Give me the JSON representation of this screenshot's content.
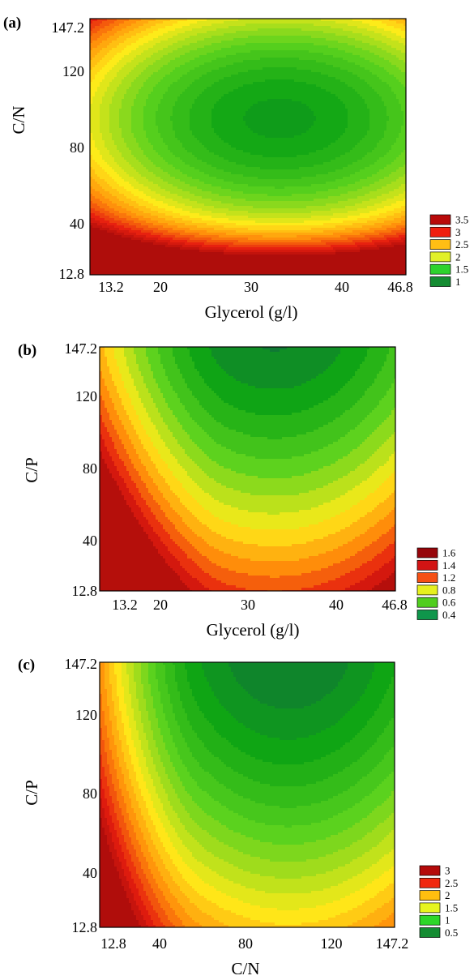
{
  "figure": {
    "colors": {
      "deep_red": "#a50a0a",
      "red": "#e61e0f",
      "orange": "#ff8c0a",
      "yellow": "#ffeb19",
      "light_green": "#5ad21e",
      "green": "#0fa514",
      "dark_green": "#0f6e3c"
    }
  },
  "chart_data": [
    {
      "panel_label": "(a)",
      "type": "contour",
      "xlabel": "Glycerol (g/l)",
      "ylabel": "C/N",
      "xlim": [
        13.2,
        46.8
      ],
      "ylim": [
        12.8,
        147.2
      ],
      "x_ticks": [
        "13.2",
        "20",
        "30",
        "40",
        "46.8"
      ],
      "y_ticks": [
        "12.8",
        "40",
        "80",
        "120",
        "147.2"
      ],
      "legend": [
        "3.5",
        "3",
        "2.5",
        "2",
        "1.5",
        "1"
      ],
      "legend_colors": [
        "#b90a0a",
        "#f01e0f",
        "#ffbe14",
        "#e1f028",
        "#2dd22d",
        "#148c32"
      ],
      "minimum": {
        "x": 33.5,
        "y": 95
      },
      "z_range": [
        0.8,
        3.8
      ]
    },
    {
      "panel_label": "(b)",
      "type": "contour",
      "xlabel": "Glycerol (g/l)",
      "ylabel": "C/P",
      "xlim": [
        13.2,
        46.8
      ],
      "ylim": [
        12.8,
        147.2
      ],
      "x_ticks": [
        "13.2",
        "20",
        "30",
        "40",
        "46.8"
      ],
      "y_ticks": [
        "12.8",
        "40",
        "80",
        "120",
        "147.2"
      ],
      "legend": [
        "1.6",
        "1.4",
        "1.2",
        "0.8",
        "0.6",
        "0.4"
      ],
      "legend_colors": [
        "#96050a",
        "#d21414",
        "#f55014",
        "#e6f01e",
        "#50cd1e",
        "#0f964b"
      ],
      "minimum": {
        "x": 33,
        "y": 147.2
      },
      "z_range": [
        0.3,
        1.75
      ]
    },
    {
      "panel_label": "(c)",
      "type": "contour",
      "xlabel": "C/N",
      "ylabel": "C/P",
      "xlim": [
        12.8,
        147.2
      ],
      "ylim": [
        12.8,
        147.2
      ],
      "x_ticks": [
        "12.8",
        "40",
        "80",
        "120",
        "147.2"
      ],
      "y_ticks": [
        "12.8",
        "40",
        "80",
        "120",
        "147.2"
      ],
      "legend": [
        "3",
        "2.5",
        "2",
        "1.5",
        "1",
        "0.5"
      ],
      "legend_colors": [
        "#b40a0a",
        "#f0280f",
        "#ffbe0f",
        "#e6f51e",
        "#2dd728",
        "#148c32"
      ],
      "minimum": {
        "x": 98,
        "y": 147.2
      },
      "z_range": [
        0.4,
        3.3
      ]
    }
  ]
}
